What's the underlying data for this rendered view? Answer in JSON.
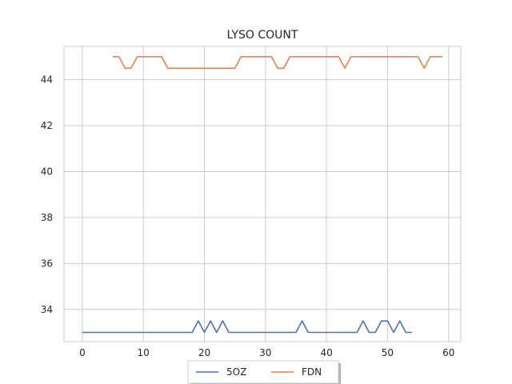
{
  "chart_data": {
    "type": "line",
    "title": "LYSO COUNT",
    "xlim": [
      -3,
      62
    ],
    "ylim": [
      32.6,
      45.45
    ],
    "xticks": [
      0,
      10,
      20,
      30,
      40,
      50,
      60
    ],
    "yticks": [
      34,
      36,
      38,
      40,
      42,
      44
    ],
    "grid": true,
    "legend_placement": "bottom-center",
    "series": [
      {
        "name": "5OZ",
        "color": "#4c72b0",
        "x": [
          0,
          18,
          19,
          20,
          21,
          22,
          23,
          24,
          35,
          36,
          37,
          45,
          46,
          47,
          48,
          49,
          50,
          51,
          52,
          53,
          54
        ],
        "y": [
          33,
          33,
          33.5,
          33,
          33.5,
          33,
          33.5,
          33,
          33,
          33.5,
          33,
          33,
          33.5,
          33,
          33,
          33.5,
          33.5,
          33,
          33.5,
          33,
          33
        ]
      },
      {
        "name": "FDN",
        "color": "#dd8452",
        "x": [
          5,
          6,
          7,
          8,
          9,
          13,
          14,
          25,
          26,
          31,
          32,
          33,
          34,
          42,
          43,
          44,
          55,
          56,
          57,
          59
        ],
        "y": [
          45,
          45,
          44.5,
          44.5,
          45,
          45,
          44.5,
          44.5,
          45,
          45,
          44.5,
          44.5,
          45,
          45,
          44.5,
          45,
          45,
          44.5,
          45,
          45
        ]
      }
    ]
  }
}
